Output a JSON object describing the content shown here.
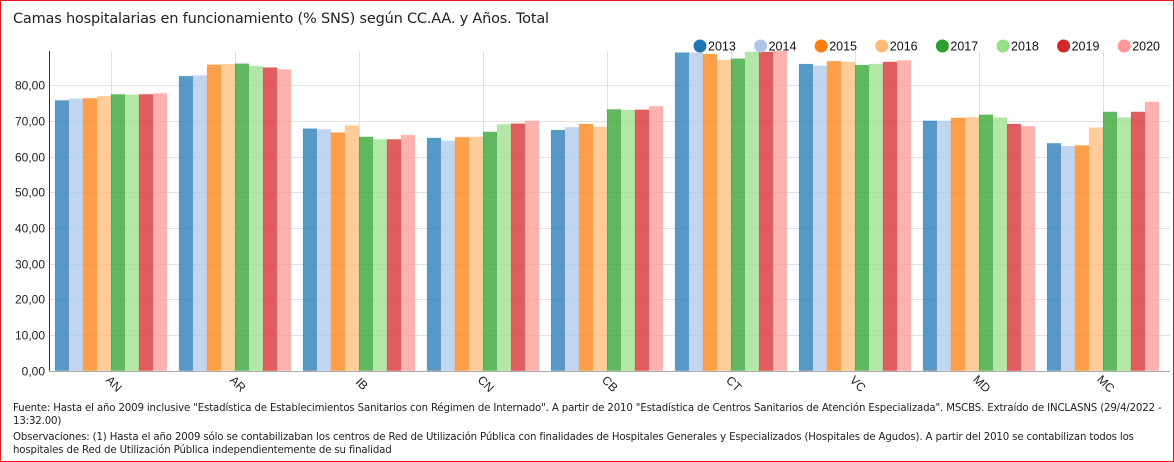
{
  "title": "Camas hospitalarias en funcionamiento (% SNS) según CC.AA. y Años. Total",
  "footer": {
    "source": "Fuente: Hasta el año 2009 inclusive \"Estadística de Establecimientos Sanitarios con Régimen de Internado\". A partir de 2010 \"Estadística de Centros Sanitarios de Atención Especializada\". MSCBS. Extraído de INCLASNS (29/4/2022 - 13:32.00)",
    "observations": "Observaciones: (1) Hasta el año 2009 sólo se contabilizaban los centros de Red de Utilización Pública con finalidades de Hospitales Generales y Especializados (Hospitales de Agudos). A partir del 2010 se contabilizan todos los hospitales de Red de Utilización Pública independientemente de su finalidad"
  },
  "chart_data": {
    "type": "bar",
    "title": "Camas hospitalarias en funcionamiento (% SNS) según CC.AA. y Años. Total",
    "xlabel": "",
    "ylabel": "",
    "ylim": [
      0,
      88
    ],
    "yticks": [
      0,
      10,
      20,
      30,
      40,
      50,
      60,
      70,
      80
    ],
    "ytick_labels": [
      "0,00",
      "10,00",
      "20,00",
      "30,00",
      "40,00",
      "50,00",
      "60,00",
      "70,00",
      "80,00"
    ],
    "grid": true,
    "legend_position": "top-right",
    "categories": [
      "AN",
      "AR",
      "IB",
      "CN",
      "CB",
      "CT",
      "VC",
      "MD",
      "MC"
    ],
    "series": [
      {
        "name": "2013",
        "color": "#1f77b4",
        "values": [
          75.7,
          82.5,
          67.8,
          65.2,
          67.4,
          89.1,
          85.9,
          70.0,
          63.7
        ]
      },
      {
        "name": "2014",
        "color": "#aec7e8",
        "values": [
          76.2,
          82.7,
          67.6,
          64.4,
          68.2,
          89.1,
          85.4,
          70.0,
          62.9
        ]
      },
      {
        "name": "2015",
        "color": "#ff7f0e",
        "values": [
          76.3,
          85.7,
          66.7,
          65.4,
          69.1,
          88.7,
          86.7,
          70.8,
          63.1
        ]
      },
      {
        "name": "2016",
        "color": "#ffbb78",
        "values": [
          76.9,
          85.9,
          68.7,
          65.5,
          68.3,
          87.0,
          86.5,
          71.0,
          68.1
        ]
      },
      {
        "name": "2017",
        "color": "#2ca02c",
        "values": [
          77.4,
          86.0,
          65.5,
          66.9,
          73.2,
          87.4,
          85.6,
          71.7,
          72.5
        ]
      },
      {
        "name": "2018",
        "color": "#98df8a",
        "values": [
          77.3,
          85.3,
          64.8,
          69.0,
          73.0,
          89.3,
          85.9,
          70.9,
          70.9
        ]
      },
      {
        "name": "2019",
        "color": "#d62728",
        "values": [
          77.4,
          84.9,
          64.8,
          69.2,
          73.1,
          89.3,
          86.5,
          69.1,
          72.5
        ]
      },
      {
        "name": "2020",
        "color": "#ff9896",
        "values": [
          77.7,
          84.4,
          66.0,
          70.0,
          74.1,
          89.6,
          86.9,
          68.5,
          75.3
        ]
      }
    ]
  }
}
